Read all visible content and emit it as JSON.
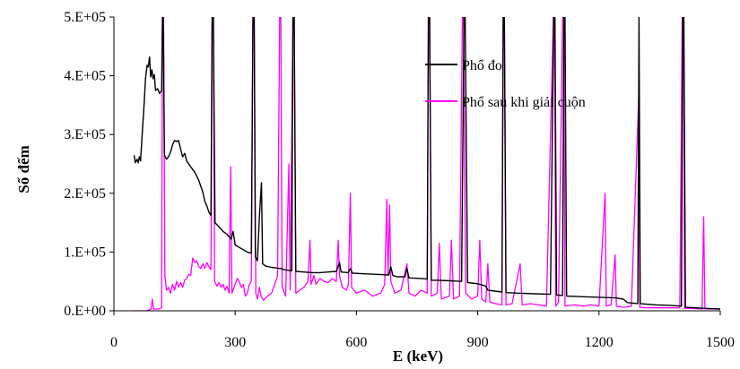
{
  "chart_data": {
    "type": "line",
    "title": "",
    "xlabel": "E (keV)",
    "ylabel": "Số đếm",
    "xlim": [
      0,
      1500
    ],
    "ylim": [
      0,
      500000
    ],
    "x_ticks": [
      "0",
      "300",
      "600",
      "900",
      "1200",
      "1500"
    ],
    "y_ticks": [
      "0.E+00",
      "1.E+05",
      "2.E+05",
      "3.E+05",
      "4.E+05",
      "5.E+05"
    ],
    "grid": false,
    "legend_position": "top-right",
    "series": [
      {
        "name": "Phổ đo",
        "color": "#000000",
        "points": [
          [
            50,
            265000
          ],
          [
            53,
            252000
          ],
          [
            57,
            258000
          ],
          [
            60,
            252000
          ],
          [
            63,
            262000
          ],
          [
            66,
            255000
          ],
          [
            70,
            300000
          ],
          [
            75,
            355000
          ],
          [
            78,
            395000
          ],
          [
            82,
            418000
          ],
          [
            85,
            415000
          ],
          [
            88,
            432000
          ],
          [
            91,
            398000
          ],
          [
            94,
            410000
          ],
          [
            97,
            395000
          ],
          [
            100,
            402000
          ],
          [
            103,
            375000
          ],
          [
            108,
            378000
          ],
          [
            113,
            370000
          ],
          [
            118,
            375000
          ],
          [
            120,
            500000
          ],
          [
            122,
            500000
          ],
          [
            125,
            265000
          ],
          [
            130,
            258000
          ],
          [
            135,
            262000
          ],
          [
            140,
            270000
          ],
          [
            145,
            282000
          ],
          [
            150,
            290000
          ],
          [
            155,
            288000
          ],
          [
            160,
            290000
          ],
          [
            165,
            275000
          ],
          [
            170,
            262000
          ],
          [
            175,
            268000
          ],
          [
            180,
            255000
          ],
          [
            190,
            245000
          ],
          [
            200,
            236000
          ],
          [
            210,
            222000
          ],
          [
            220,
            202000
          ],
          [
            225,
            186000
          ],
          [
            230,
            178000
          ],
          [
            235,
            168000
          ],
          [
            240,
            162000
          ],
          [
            243,
            500000
          ],
          [
            246,
            500000
          ],
          [
            250,
            150000
          ],
          [
            260,
            143000
          ],
          [
            270,
            135000
          ],
          [
            280,
            130000
          ],
          [
            290,
            122000
          ],
          [
            295,
            135000
          ],
          [
            300,
            112000
          ],
          [
            310,
            108000
          ],
          [
            320,
            104000
          ],
          [
            330,
            100000
          ],
          [
            340,
            98000
          ],
          [
            344,
            500000
          ],
          [
            347,
            500000
          ],
          [
            350,
            92000
          ],
          [
            355,
            85000
          ],
          [
            360,
            160000
          ],
          [
            365,
            218000
          ],
          [
            368,
            80000
          ],
          [
            375,
            76000
          ],
          [
            390,
            74000
          ],
          [
            400,
            73000
          ],
          [
            410,
            72000
          ],
          [
            414,
            72000
          ],
          [
            420,
            70000
          ],
          [
            430,
            69000
          ],
          [
            440,
            68000
          ],
          [
            443,
            500000
          ],
          [
            446,
            500000
          ],
          [
            450,
            67000
          ],
          [
            470,
            66000
          ],
          [
            490,
            65000
          ],
          [
            510,
            65000
          ],
          [
            530,
            66000
          ],
          [
            550,
            67000
          ],
          [
            558,
            82000
          ],
          [
            562,
            66000
          ],
          [
            580,
            65000
          ],
          [
            585,
            72000
          ],
          [
            590,
            64000
          ],
          [
            620,
            63000
          ],
          [
            650,
            62000
          ],
          [
            680,
            61000
          ],
          [
            685,
            75000
          ],
          [
            690,
            60000
          ],
          [
            700,
            58000
          ],
          [
            720,
            58000
          ],
          [
            725,
            72000
          ],
          [
            730,
            56000
          ],
          [
            760,
            55000
          ],
          [
            775,
            54000
          ],
          [
            778,
            500000
          ],
          [
            781,
            500000
          ],
          [
            785,
            52000
          ],
          [
            800,
            52000
          ],
          [
            830,
            51000
          ],
          [
            860,
            50000
          ],
          [
            866,
            500000
          ],
          [
            869,
            500000
          ],
          [
            875,
            48000
          ],
          [
            900,
            46000
          ],
          [
            920,
            42000
          ],
          [
            925,
            35000
          ],
          [
            960,
            32000
          ],
          [
            963,
            500000
          ],
          [
            966,
            500000
          ],
          [
            970,
            31000
          ],
          [
            1000,
            30000
          ],
          [
            1040,
            29000
          ],
          [
            1080,
            28000
          ],
          [
            1088,
            500000
          ],
          [
            1091,
            500000
          ],
          [
            1095,
            27000
          ],
          [
            1110,
            26000
          ],
          [
            1113,
            500000
          ],
          [
            1116,
            500000
          ],
          [
            1120,
            25000
          ],
          [
            1160,
            24000
          ],
          [
            1200,
            23000
          ],
          [
            1240,
            22000
          ],
          [
            1260,
            20000
          ],
          [
            1270,
            14000
          ],
          [
            1296,
            12000
          ],
          [
            1299,
            500000
          ],
          [
            1302,
            12000
          ],
          [
            1340,
            10000
          ],
          [
            1380,
            9000
          ],
          [
            1404,
            8000
          ],
          [
            1407,
            500000
          ],
          [
            1410,
            500000
          ],
          [
            1414,
            6000
          ],
          [
            1440,
            5000
          ],
          [
            1470,
            4000
          ],
          [
            1500,
            3000
          ]
        ]
      },
      {
        "name": "Phổ sau khi giải cuộn",
        "color": "#FF00FF",
        "points": [
          [
            50,
            0
          ],
          [
            80,
            0
          ],
          [
            92,
            3000
          ],
          [
            95,
            20000
          ],
          [
            98,
            3000
          ],
          [
            110,
            3000
          ],
          [
            118,
            5000
          ],
          [
            120,
            500000
          ],
          [
            123,
            500000
          ],
          [
            126,
            60000
          ],
          [
            130,
            35000
          ],
          [
            135,
            40000
          ],
          [
            140,
            30000
          ],
          [
            145,
            45000
          ],
          [
            150,
            35000
          ],
          [
            155,
            50000
          ],
          [
            160,
            40000
          ],
          [
            165,
            48000
          ],
          [
            170,
            40000
          ],
          [
            175,
            52000
          ],
          [
            180,
            55000
          ],
          [
            185,
            62000
          ],
          [
            190,
            60000
          ],
          [
            195,
            90000
          ],
          [
            200,
            82000
          ],
          [
            205,
            85000
          ],
          [
            210,
            75000
          ],
          [
            215,
            72000
          ],
          [
            220,
            80000
          ],
          [
            225,
            72000
          ],
          [
            230,
            82000
          ],
          [
            235,
            75000
          ],
          [
            240,
            70000
          ],
          [
            243,
            500000
          ],
          [
            246,
            500000
          ],
          [
            249,
            50000
          ],
          [
            255,
            42000
          ],
          [
            260,
            48000
          ],
          [
            265,
            40000
          ],
          [
            270,
            45000
          ],
          [
            275,
            35000
          ],
          [
            280,
            42000
          ],
          [
            285,
            30000
          ],
          [
            289,
            245000
          ],
          [
            292,
            30000
          ],
          [
            300,
            45000
          ],
          [
            305,
            55000
          ],
          [
            310,
            50000
          ],
          [
            315,
            40000
          ],
          [
            320,
            45000
          ],
          [
            325,
            25000
          ],
          [
            330,
            30000
          ],
          [
            335,
            45000
          ],
          [
            340,
            50000
          ],
          [
            344,
            500000
          ],
          [
            347,
            500000
          ],
          [
            351,
            30000
          ],
          [
            355,
            20000
          ],
          [
            360,
            40000
          ],
          [
            364,
            25000
          ],
          [
            370,
            18000
          ],
          [
            380,
            25000
          ],
          [
            390,
            30000
          ],
          [
            400,
            50000
          ],
          [
            405,
            60000
          ],
          [
            410,
            500000
          ],
          [
            413,
            500000
          ],
          [
            416,
            40000
          ],
          [
            425,
            25000
          ],
          [
            433,
            250000
          ],
          [
            436,
            35000
          ],
          [
            443,
            500000
          ],
          [
            446,
            500000
          ],
          [
            450,
            30000
          ],
          [
            460,
            35000
          ],
          [
            470,
            40000
          ],
          [
            480,
            50000
          ],
          [
            485,
            120000
          ],
          [
            488,
            45000
          ],
          [
            495,
            60000
          ],
          [
            500,
            45000
          ],
          [
            510,
            55000
          ],
          [
            520,
            50000
          ],
          [
            530,
            48000
          ],
          [
            540,
            55000
          ],
          [
            550,
            50000
          ],
          [
            555,
            120000
          ],
          [
            558,
            60000
          ],
          [
            565,
            40000
          ],
          [
            575,
            35000
          ],
          [
            580,
            45000
          ],
          [
            585,
            200000
          ],
          [
            588,
            40000
          ],
          [
            600,
            30000
          ],
          [
            620,
            35000
          ],
          [
            640,
            25000
          ],
          [
            660,
            30000
          ],
          [
            670,
            45000
          ],
          [
            675,
            190000
          ],
          [
            678,
            60000
          ],
          [
            682,
            180000
          ],
          [
            685,
            50000
          ],
          [
            695,
            30000
          ],
          [
            710,
            35000
          ],
          [
            725,
            80000
          ],
          [
            730,
            30000
          ],
          [
            745,
            25000
          ],
          [
            760,
            35000
          ],
          [
            775,
            30000
          ],
          [
            778,
            500000
          ],
          [
            781,
            500000
          ],
          [
            785,
            25000
          ],
          [
            800,
            30000
          ],
          [
            805,
            115000
          ],
          [
            810,
            20000
          ],
          [
            830,
            25000
          ],
          [
            835,
            120000
          ],
          [
            840,
            20000
          ],
          [
            855,
            25000
          ],
          [
            862,
            500000
          ],
          [
            865,
            500000
          ],
          [
            870,
            30000
          ],
          [
            885,
            20000
          ],
          [
            900,
            25000
          ],
          [
            905,
            120000
          ],
          [
            910,
            20000
          ],
          [
            920,
            15000
          ],
          [
            925,
            80000
          ],
          [
            930,
            15000
          ],
          [
            945,
            12000
          ],
          [
            960,
            10000
          ],
          [
            963,
            500000
          ],
          [
            966,
            500000
          ],
          [
            970,
            10000
          ],
          [
            985,
            12000
          ],
          [
            1005,
            80000
          ],
          [
            1010,
            10000
          ],
          [
            1030,
            12000
          ],
          [
            1050,
            10000
          ],
          [
            1070,
            8000
          ],
          [
            1087,
            500000
          ],
          [
            1090,
            500000
          ],
          [
            1093,
            8000
          ],
          [
            1100,
            15000
          ],
          [
            1110,
            500000
          ],
          [
            1113,
            500000
          ],
          [
            1116,
            8000
          ],
          [
            1140,
            10000
          ],
          [
            1160,
            8000
          ],
          [
            1180,
            10000
          ],
          [
            1200,
            8000
          ],
          [
            1215,
            200000
          ],
          [
            1218,
            8000
          ],
          [
            1230,
            10000
          ],
          [
            1240,
            95000
          ],
          [
            1243,
            8000
          ],
          [
            1260,
            6000
          ],
          [
            1280,
            8000
          ],
          [
            1298,
            360000
          ],
          [
            1301,
            6000
          ],
          [
            1320,
            5000
          ],
          [
            1350,
            5000
          ],
          [
            1380,
            5000
          ],
          [
            1400,
            5000
          ],
          [
            1406,
            500000
          ],
          [
            1409,
            500000
          ],
          [
            1412,
            4000
          ],
          [
            1430,
            4000
          ],
          [
            1455,
            3000
          ],
          [
            1459,
            160000
          ],
          [
            1462,
            3000
          ],
          [
            1480,
            3000
          ],
          [
            1500,
            3000
          ]
        ]
      }
    ]
  }
}
